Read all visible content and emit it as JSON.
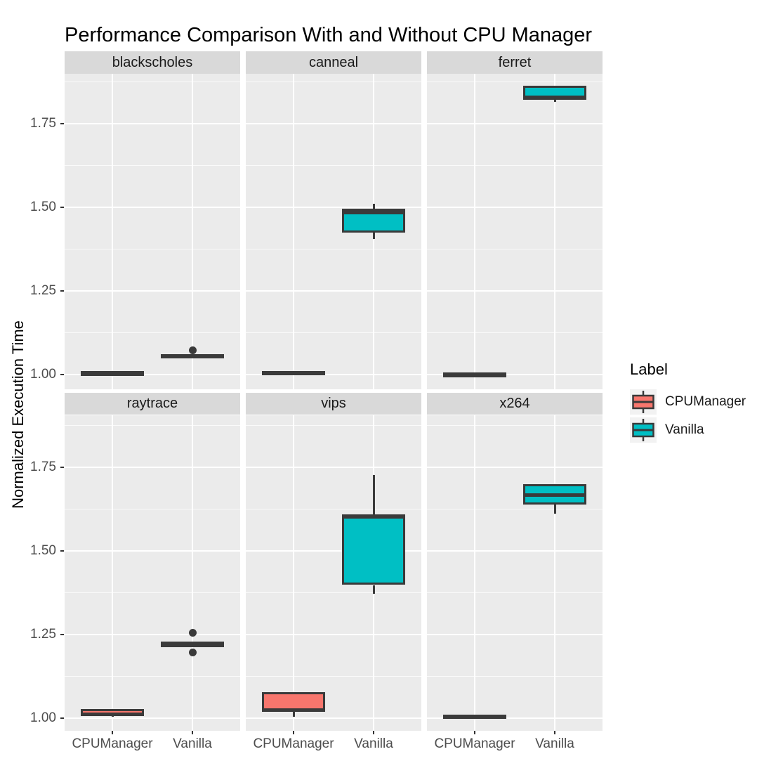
{
  "title": "Performance Comparison With and Without CPU Manager",
  "y_axis": {
    "label": "Normalized Execution Time",
    "tick_labels": [
      "1.00",
      "1.25",
      "1.50",
      "1.75"
    ]
  },
  "x_axis": {
    "categories": [
      "CPUManager",
      "Vanilla"
    ]
  },
  "legend": {
    "title": "Label",
    "items": [
      {
        "label": "CPUManager",
        "color": "#F8766D"
      },
      {
        "label": "Vanilla",
        "color": "#00BFC4"
      }
    ]
  },
  "colors": {
    "panel_bg": "#EBEBEB",
    "strip_bg": "#D9D9D9",
    "grid": "#FFFFFF",
    "box_stroke": "#3A3A3A",
    "tick_text": "#4D4D4D",
    "text": "#1A1A1A",
    "legend_key_bg": "#F2F2F2"
  },
  "chart_data": {
    "type": "boxplot",
    "title": "Performance Comparison With and Without CPU Manager",
    "xlabel": "",
    "ylabel": "Normalized Execution Time",
    "ylim": [
      0.96,
      1.9
    ],
    "yticks": [
      1.0,
      1.25,
      1.5,
      1.75
    ],
    "yticks_minor": [
      1.125,
      1.375,
      1.625,
      1.875
    ],
    "grid": true,
    "legend_position": "right",
    "categories": [
      "CPUManager",
      "Vanilla"
    ],
    "facets": [
      {
        "name": "blackscholes",
        "boxes": [
          {
            "group": "CPUManager",
            "min": 1.0,
            "q1": 1.003,
            "median": 1.006,
            "q3": 1.009,
            "max": 1.011,
            "outliers": []
          },
          {
            "group": "Vanilla",
            "min": 1.048,
            "q1": 1.052,
            "median": 1.056,
            "q3": 1.06,
            "max": 1.062,
            "outliers": [
              1.073
            ]
          }
        ]
      },
      {
        "name": "canneal",
        "boxes": [
          {
            "group": "CPUManager",
            "min": 0.999,
            "q1": 1.001,
            "median": 1.006,
            "q3": 1.01,
            "max": 1.012,
            "outliers": []
          },
          {
            "group": "Vanilla",
            "min": 1.405,
            "q1": 1.424,
            "median": 1.484,
            "q3": 1.496,
            "max": 1.51,
            "outliers": []
          }
        ]
      },
      {
        "name": "ferret",
        "boxes": [
          {
            "group": "CPUManager",
            "min": 0.998,
            "q1": 1.0,
            "median": 1.002,
            "q3": 1.004,
            "max": 1.005,
            "outliers": []
          },
          {
            "group": "Vanilla",
            "min": 1.814,
            "q1": 1.821,
            "median": 1.829,
            "q3": 1.864,
            "max": 1.866,
            "outliers": []
          }
        ]
      },
      {
        "name": "raytrace",
        "boxes": [
          {
            "group": "CPUManager",
            "min": 1.004,
            "q1": 1.007,
            "median": 1.012,
            "q3": 1.028,
            "max": 1.03,
            "outliers": []
          },
          {
            "group": "Vanilla",
            "min": 1.219,
            "q1": 1.221,
            "median": 1.223,
            "q3": 1.225,
            "max": 1.226,
            "outliers": [
              1.256,
              1.196
            ]
          }
        ]
      },
      {
        "name": "vips",
        "boxes": [
          {
            "group": "CPUManager",
            "min": 1.005,
            "q1": 1.019,
            "median": 1.024,
            "q3": 1.078,
            "max": 1.08,
            "outliers": []
          },
          {
            "group": "Vanilla",
            "min": 1.372,
            "q1": 1.398,
            "median": 1.601,
            "q3": 1.609,
            "max": 1.728,
            "outliers": []
          }
        ]
      },
      {
        "name": "x264",
        "boxes": [
          {
            "group": "CPUManager",
            "min": 1.0,
            "q1": 1.002,
            "median": 1.006,
            "q3": 1.011,
            "max": 1.013,
            "outliers": []
          },
          {
            "group": "Vanilla",
            "min": 1.612,
            "q1": 1.638,
            "median": 1.668,
            "q3": 1.7,
            "max": 1.702,
            "outliers": []
          }
        ]
      }
    ]
  }
}
